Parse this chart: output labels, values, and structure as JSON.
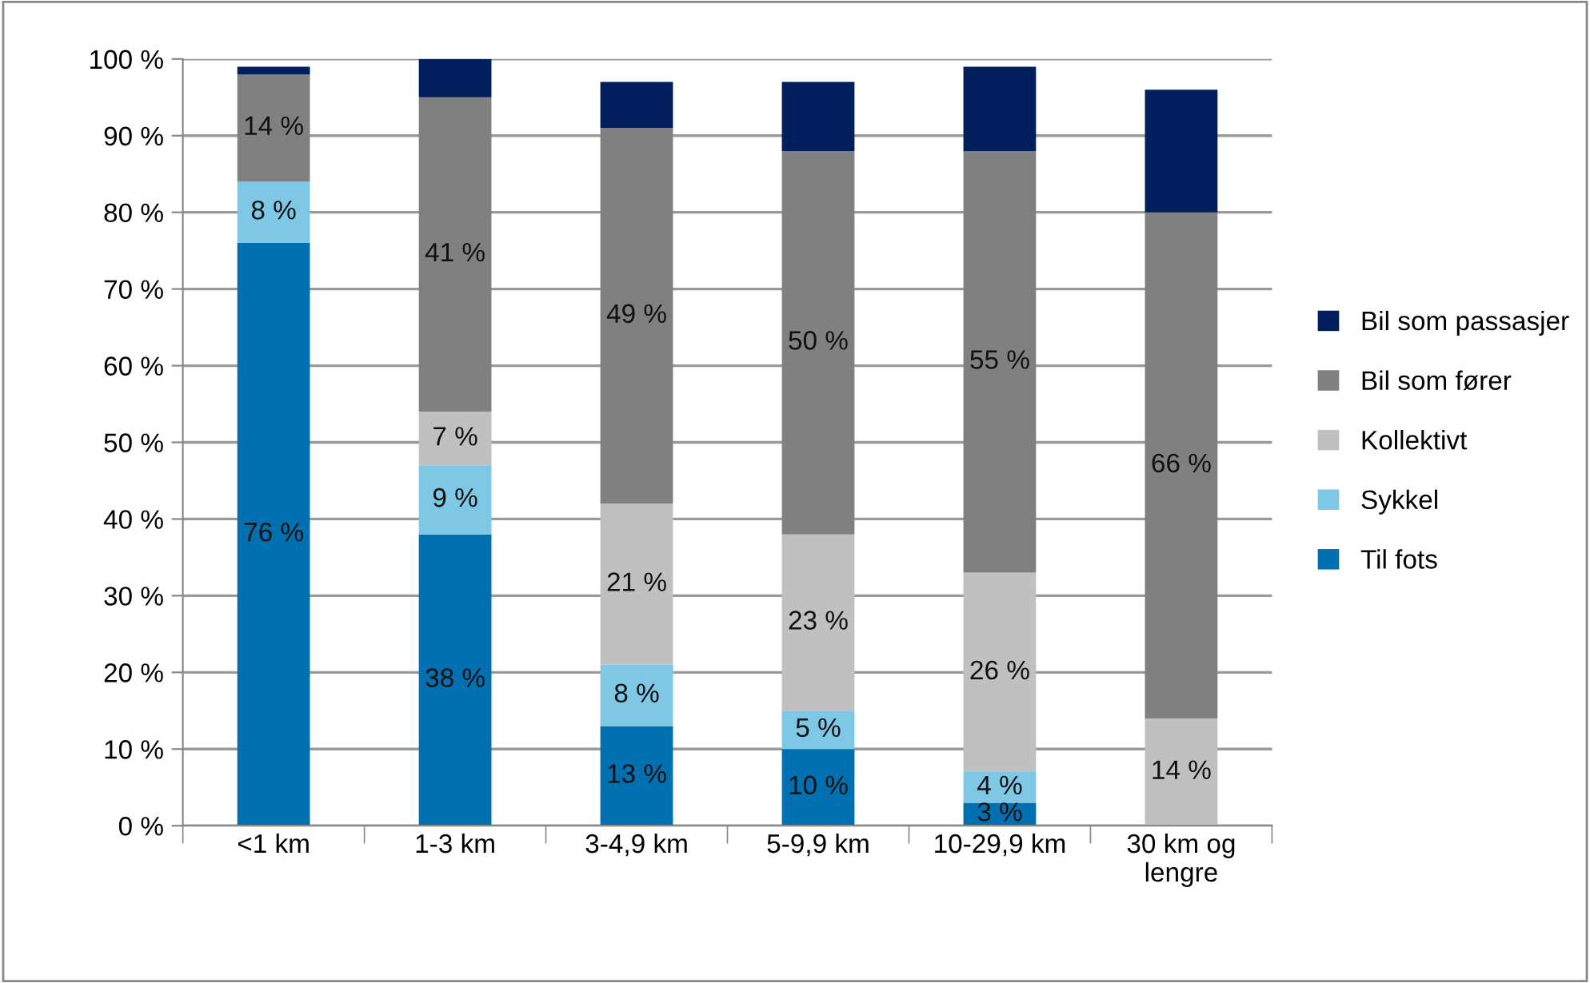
{
  "chart_data": {
    "type": "bar",
    "stacked": true,
    "categories": [
      "<1 km",
      "1-3 km",
      "3-4,9 km",
      "5-9,9 km",
      "10-29,9 km",
      "30 km og\nlengre"
    ],
    "series": [
      {
        "name": "Til fots",
        "color": "#0070b0",
        "values": [
          76,
          38,
          13,
          10,
          3,
          0
        ],
        "value_labels": [
          "76 %",
          "38 %",
          "13 %",
          "10 %",
          "3 %",
          null
        ]
      },
      {
        "name": "Sykkel",
        "color": "#7ec8e6",
        "values": [
          8,
          9,
          8,
          5,
          4,
          0
        ],
        "value_labels": [
          "8 %",
          "9 %",
          "8 %",
          "5 %",
          "4 %",
          null
        ]
      },
      {
        "name": "Kollektivt",
        "color": "#c0c0c0",
        "values": [
          0,
          7,
          21,
          23,
          26,
          14
        ],
        "value_labels": [
          null,
          "7 %",
          "21 %",
          "23 %",
          "26 %",
          "14 %"
        ]
      },
      {
        "name": "Bil som fører",
        "color": "#808080",
        "values": [
          14,
          41,
          49,
          50,
          55,
          66
        ],
        "value_labels": [
          "14 %",
          "41 %",
          "49 %",
          "50 %",
          "55 %",
          "66 %"
        ]
      },
      {
        "name": "Bil som passasjer",
        "color": "#001f5c",
        "values": [
          1,
          5,
          6,
          9,
          11,
          16
        ],
        "value_labels": [
          null,
          null,
          null,
          null,
          null,
          null
        ]
      }
    ],
    "ylim": [
      0,
      100
    ],
    "yticks": [
      {
        "value": 0,
        "label": "0 %"
      },
      {
        "value": 10,
        "label": "10 %"
      },
      {
        "value": 20,
        "label": "20 %"
      },
      {
        "value": 30,
        "label": "30 %"
      },
      {
        "value": 40,
        "label": "40 %"
      },
      {
        "value": 50,
        "label": "50 %"
      },
      {
        "value": 60,
        "label": "60 %"
      },
      {
        "value": 70,
        "label": "70 %"
      },
      {
        "value": 80,
        "label": "80 %"
      },
      {
        "value": 90,
        "label": "90 %"
      },
      {
        "value": 100,
        "label": "100 %"
      }
    ],
    "grid": "y",
    "legend": "right"
  }
}
